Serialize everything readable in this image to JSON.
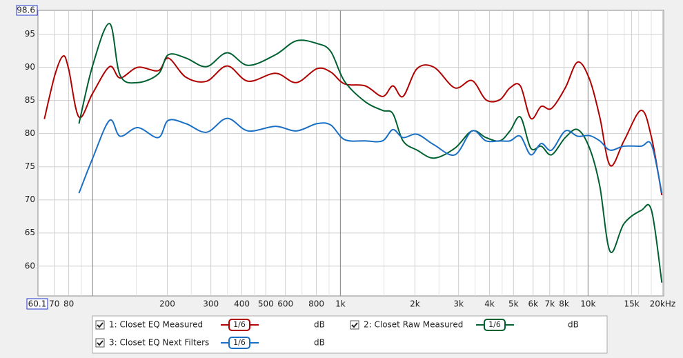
{
  "chart_data": {
    "type": "line",
    "x": [
      63.8,
      70.3,
      75.9,
      79.9,
      88,
      100,
      117,
      129,
      152,
      184,
      202,
      238,
      288,
      349,
      424,
      547,
      664,
      804,
      914,
      1039,
      1260,
      1479,
      1629,
      1790,
      2040,
      2390,
      2900,
      3400,
      3870,
      4400,
      4840,
      5330,
      5870,
      6470,
      7120,
      8090,
      9080,
      10140,
      11150,
      12280,
      13960,
      16380,
      18040,
      19860
    ],
    "series": [
      {
        "name": "1: Closet EQ Measured",
        "color": "#b00000",
        "smoothing": "1/6",
        "unit": "dB",
        "values": [
          82.2,
          88.8,
          91.7,
          89.8,
          82.5,
          86.1,
          90.1,
          88.4,
          90,
          89.5,
          91.4,
          88.5,
          87.9,
          90.2,
          87.9,
          89.1,
          87.7,
          89.8,
          89.3,
          87.5,
          87.2,
          85.6,
          87.2,
          85.6,
          89.8,
          90,
          86.9,
          88,
          85.1,
          85.1,
          86.9,
          87.2,
          82.3,
          84.1,
          83.8,
          86.9,
          90.8,
          88.2,
          82.5,
          75.2,
          78.9,
          83.5,
          79.4,
          70.7
        ]
      },
      {
        "name": "2: Closet Raw Measured",
        "color": "#006030",
        "smoothing": "1/6",
        "unit": "dB",
        "values": [
          null,
          null,
          null,
          null,
          81.5,
          90.3,
          96.6,
          88.8,
          87.7,
          89,
          91.9,
          91.4,
          90.1,
          92.2,
          90.3,
          91.9,
          94,
          93.6,
          92.4,
          87.9,
          84.8,
          83.5,
          83,
          78.9,
          77.5,
          76.3,
          77.8,
          80.4,
          79.4,
          78.9,
          80.4,
          82.5,
          77.8,
          78.1,
          76.8,
          79.4,
          80.6,
          77.8,
          72.1,
          62.2,
          66.4,
          68.4,
          68.4,
          57.5
        ]
      },
      {
        "name": "3: Closet EQ Next Filters",
        "color": "#1a6fc4",
        "smoothing": "1/6",
        "unit": "dB",
        "values": [
          null,
          null,
          null,
          null,
          71,
          76.3,
          82,
          79.6,
          80.9,
          79.4,
          82,
          81.5,
          80.2,
          82.3,
          80.4,
          81.1,
          80.4,
          81.5,
          81.3,
          79.1,
          78.9,
          78.9,
          80.6,
          79.4,
          79.9,
          78.3,
          76.8,
          80.4,
          78.9,
          78.9,
          78.9,
          79.6,
          76.8,
          78.5,
          77.5,
          80.4,
          79.6,
          79.7,
          78.9,
          77.5,
          78.1,
          78.1,
          78.3,
          71
        ]
      }
    ],
    "xlim": [
      60.1,
      20200
    ],
    "log_x": true,
    "xticks": [
      60.1,
      70,
      80,
      200,
      300,
      400,
      500,
      600,
      800,
      {
        "value": 1000,
        "label": "1k"
      },
      {
        "value": 2000,
        "label": "2k"
      },
      {
        "value": 3000,
        "label": "3k"
      },
      {
        "value": 4000,
        "label": "4k"
      },
      {
        "value": 5000,
        "label": "5k"
      },
      {
        "value": 6000,
        "label": "6k"
      },
      {
        "value": 7000,
        "label": "7k"
      },
      {
        "value": 8000,
        "label": "8k"
      },
      {
        "value": 10000,
        "label": "10k"
      },
      {
        "value": 15000,
        "label": "15k"
      },
      {
        "value": 20000,
        "label": "20kHz"
      }
    ],
    "x_decade_lines": [
      100,
      1000,
      10000
    ],
    "x_minor_grid": [
      90,
      150,
      250,
      350,
      450,
      700,
      900,
      1500,
      2500,
      3500,
      4500,
      9000,
      12000,
      14000,
      16000,
      18000
    ],
    "ylim": [
      55.5,
      98.6
    ],
    "yticks": [
      60,
      65,
      70,
      75,
      80,
      85,
      90,
      95,
      98.6
    ],
    "grid": true
  }
}
